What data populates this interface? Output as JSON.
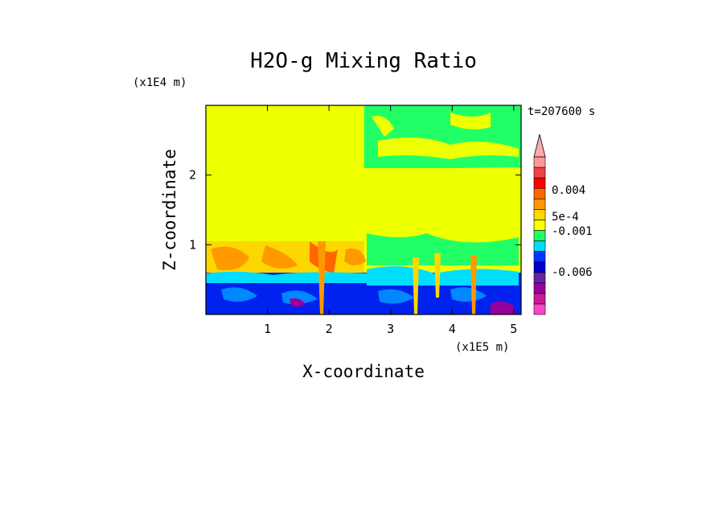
{
  "chart_data": {
    "type": "heatmap",
    "title": "H2O-g Mixing Ratio",
    "xlabel": "X-coordinate",
    "ylabel": "Z-coordinate",
    "x_unit": "(x1E5 m)",
    "y_unit": "(x1E4 m)",
    "time_label": "t=207600 s",
    "xlim": [
      0,
      5.12
    ],
    "ylim": [
      0,
      3.0
    ],
    "x_ticks": [
      "1",
      "2",
      "3",
      "4",
      "5"
    ],
    "x_tick_values": [
      1,
      2,
      3,
      4,
      5
    ],
    "y_ticks": [
      "1",
      "2"
    ],
    "y_tick_values": [
      1,
      2
    ],
    "colorbar": {
      "labels": [
        "0.004",
        "5e-4",
        "-0.001",
        "-0.006"
      ],
      "colors": [
        "#ff44cc",
        "#cc1a99",
        "#990099",
        "#6622aa",
        "#0000cc",
        "#0033ff",
        "#00ddff",
        "#22ff66",
        "#ffff00",
        "#ffd700",
        "#ff9900",
        "#ff6600",
        "#ff0000",
        "#ee4444",
        "#ff9999"
      ]
    },
    "regions": [
      {
        "name": "upper-left",
        "x": [
          0,
          2.57
        ],
        "z": [
          1.05,
          3.0
        ],
        "color": "#eeff00"
      },
      {
        "name": "upper-right",
        "x": [
          2.57,
          5.12
        ],
        "z": [
          2.1,
          3.0
        ],
        "color": "#22ff66"
      },
      {
        "name": "mid-right",
        "x": [
          2.57,
          5.12
        ],
        "z": [
          0.8,
          2.1
        ],
        "color": "#eeff00"
      },
      {
        "name": "middle-left",
        "x": [
          0,
          2.57
        ],
        "z": [
          0.6,
          1.05
        ],
        "color": "#ffd700"
      },
      {
        "name": "lower",
        "x": [
          0,
          5.12
        ],
        "z": [
          0,
          0.6
        ],
        "color": "#0022ee"
      }
    ]
  }
}
